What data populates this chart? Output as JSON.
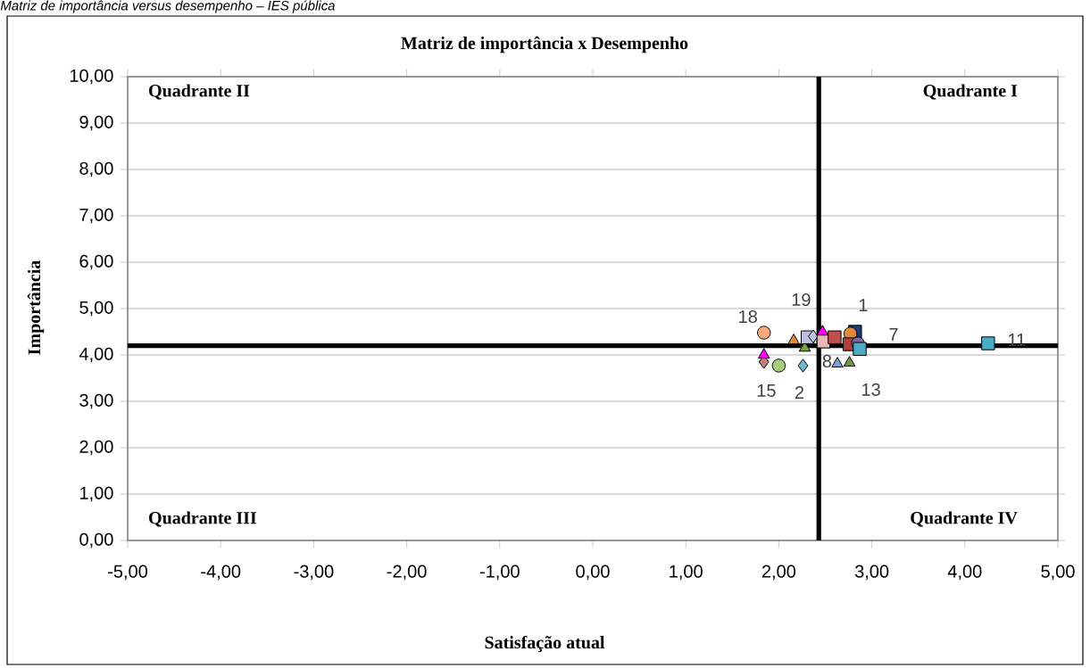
{
  "chart_data": {
    "type": "scatter",
    "title": "Matriz de importância x Desempenho",
    "xlabel": "Satisfação atual",
    "ylabel": "Importância",
    "annotations": [
      "Matriz de importância versus desempenho – IES pública",
      "Quadrante II",
      "Quadrante I",
      "Quadrante III",
      "Quadrante IV"
    ],
    "xlim": [
      -5,
      5
    ],
    "ylim": [
      0,
      10
    ],
    "xticks": [
      {
        "value": -5,
        "label": "-5,00"
      },
      {
        "value": -4,
        "label": "-4,00"
      },
      {
        "value": -3,
        "label": "-3,00"
      },
      {
        "value": -2,
        "label": "-2,00"
      },
      {
        "value": -1,
        "label": "-1,00"
      },
      {
        "value": 0,
        "label": "0,00"
      },
      {
        "value": 1,
        "label": "1,00"
      },
      {
        "value": 2,
        "label": "2,00"
      },
      {
        "value": 3,
        "label": "3,00"
      },
      {
        "value": 4,
        "label": "4,00"
      },
      {
        "value": 5,
        "label": "5,00"
      }
    ],
    "yticks": [
      {
        "value": 0,
        "label": "0,00"
      },
      {
        "value": 1,
        "label": "1,00"
      },
      {
        "value": 2,
        "label": "2,00"
      },
      {
        "value": 3,
        "label": "3,00"
      },
      {
        "value": 4,
        "label": "4,00"
      },
      {
        "value": 5,
        "label": "5,00"
      },
      {
        "value": 6,
        "label": "6,00"
      },
      {
        "value": 7,
        "label": "7,00"
      },
      {
        "value": 8,
        "label": "8,00"
      },
      {
        "value": 9,
        "label": "9,00"
      },
      {
        "value": 10,
        "label": "10,00"
      }
    ],
    "grid": "y",
    "ref_lines": [
      {
        "axis": "x",
        "value": 2.43,
        "color": "#000000"
      },
      {
        "axis": "y",
        "value": 4.2,
        "color": "#000000"
      }
    ],
    "series": [
      {
        "name": "18",
        "color": "#f9a97a",
        "marker": "circle",
        "x": [
          1.84
        ],
        "values": [
          4.48
        ]
      },
      {
        "color": "#c0807a",
        "marker": "diamond",
        "x": [
          1.84
        ],
        "values": [
          3.85
        ]
      },
      {
        "color": "#ff00ff",
        "marker": "triangle",
        "x": [
          1.84
        ],
        "values": [
          4.0
        ]
      },
      {
        "name": "15",
        "color": "#a9cc7e",
        "marker": "circle",
        "x": [
          2.0
        ],
        "values": [
          3.77
        ]
      },
      {
        "color": "#e08a3c",
        "marker": "triangle",
        "x": [
          2.16
        ],
        "values": [
          4.31
        ]
      },
      {
        "color": "#77a03e",
        "marker": "triangle",
        "x": [
          2.28
        ],
        "values": [
          4.15
        ]
      },
      {
        "name": "2",
        "color": "#6fb8d0",
        "marker": "diamond",
        "x": [
          2.26
        ],
        "values": [
          3.77
        ]
      },
      {
        "color": "#c0c0dc",
        "marker": "square",
        "x": [
          2.31
        ],
        "values": [
          4.38
        ]
      },
      {
        "color": "#b4c6e0",
        "marker": "diamond",
        "x": [
          2.37
        ],
        "values": [
          4.4
        ]
      },
      {
        "name": "19",
        "color": "#ff00ff",
        "marker": "triangle",
        "x": [
          2.47
        ],
        "values": [
          4.5
        ]
      },
      {
        "name": "8",
        "color": "#e6b9b8",
        "marker": "square",
        "x": [
          2.48
        ],
        "values": [
          4.29
        ]
      },
      {
        "name": "1",
        "color": "#c0504d",
        "marker": "square",
        "x": [
          2.6
        ],
        "values": [
          4.38
        ]
      },
      {
        "color": "#7f9fd0",
        "marker": "triangle",
        "x": [
          2.63
        ],
        "values": [
          3.81
        ]
      },
      {
        "name": "13",
        "color": "#77933c",
        "marker": "triangle",
        "x": [
          2.76
        ],
        "values": [
          3.83
        ]
      },
      {
        "color": "#1f3a7a",
        "marker": "square",
        "x": [
          2.82
        ],
        "values": [
          4.5
        ]
      },
      {
        "color": "#e08a3c",
        "marker": "circle",
        "x": [
          2.77
        ],
        "values": [
          4.46
        ]
      },
      {
        "color": "#b04040",
        "marker": "square",
        "x": [
          2.76
        ],
        "values": [
          4.23
        ]
      },
      {
        "name": "7",
        "color": "#8064a2",
        "marker": "circle",
        "x": [
          2.85
        ],
        "values": [
          4.25
        ]
      },
      {
        "color": "#4bacc6",
        "marker": "square",
        "x": [
          2.87
        ],
        "values": [
          4.13
        ]
      },
      {
        "name": "11",
        "color": "#4bacc6",
        "marker": "square",
        "x": [
          4.25
        ],
        "values": [
          4.25
        ]
      }
    ]
  }
}
